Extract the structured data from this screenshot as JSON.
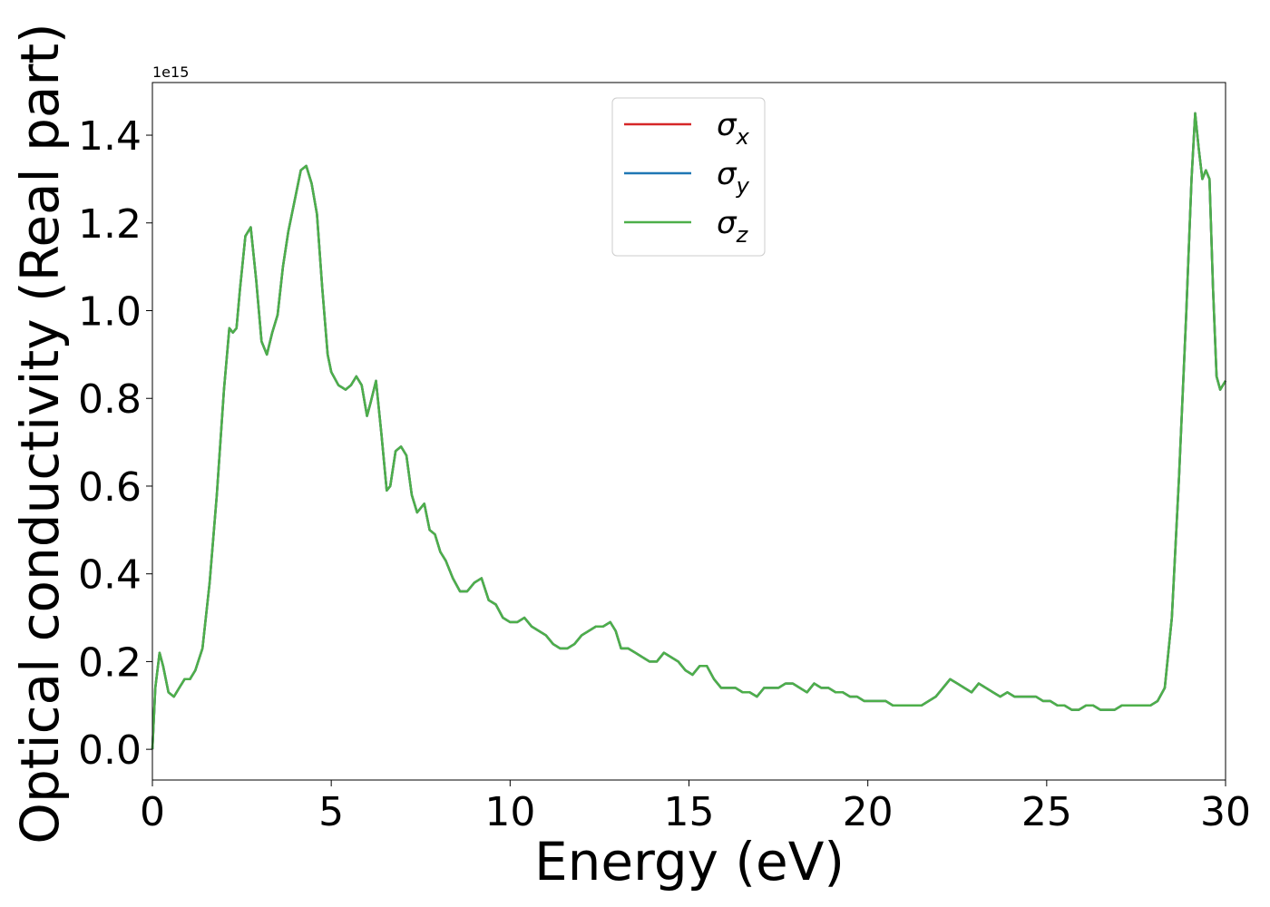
{
  "chart_data": {
    "type": "line",
    "xlabel": "Energy (eV)",
    "ylabel": "Optical conductivity (Real part)",
    "y_offset_label": "1e15",
    "xlim": [
      0,
      30
    ],
    "ylim": [
      -0.07,
      1.52
    ],
    "x_ticks": [
      0,
      5,
      10,
      15,
      20,
      25,
      30
    ],
    "y_ticks": [
      0.0,
      0.2,
      0.4,
      0.6,
      0.8,
      1.0,
      1.2,
      1.4
    ],
    "grid": false,
    "legend_position": "top-center",
    "series": [
      {
        "name": "σ",
        "sub": "x",
        "color": "#d62728"
      },
      {
        "name": "σ",
        "sub": "y",
        "color": "#1f77b4"
      },
      {
        "name": "σ",
        "sub": "z",
        "color": "#4daf4a"
      }
    ],
    "x": [
      0,
      0.08,
      0.2,
      0.3,
      0.45,
      0.6,
      0.75,
      0.9,
      1.05,
      1.2,
      1.4,
      1.6,
      1.8,
      2.0,
      2.15,
      2.25,
      2.35,
      2.45,
      2.6,
      2.75,
      2.9,
      3.05,
      3.2,
      3.35,
      3.5,
      3.65,
      3.8,
      4.0,
      4.15,
      4.3,
      4.45,
      4.6,
      4.75,
      4.9,
      5.0,
      5.2,
      5.4,
      5.55,
      5.7,
      5.85,
      6.0,
      6.1,
      6.25,
      6.4,
      6.55,
      6.65,
      6.8,
      6.95,
      7.1,
      7.25,
      7.4,
      7.6,
      7.75,
      7.9,
      8.05,
      8.2,
      8.4,
      8.6,
      8.8,
      9.0,
      9.2,
      9.4,
      9.6,
      9.8,
      10.0,
      10.2,
      10.4,
      10.6,
      10.8,
      11.0,
      11.2,
      11.4,
      11.6,
      11.8,
      12.0,
      12.2,
      12.4,
      12.6,
      12.8,
      12.95,
      13.1,
      13.3,
      13.5,
      13.7,
      13.9,
      14.1,
      14.3,
      14.5,
      14.7,
      14.9,
      15.1,
      15.3,
      15.5,
      15.7,
      15.9,
      16.1,
      16.3,
      16.5,
      16.7,
      16.9,
      17.1,
      17.3,
      17.5,
      17.7,
      17.9,
      18.1,
      18.3,
      18.5,
      18.7,
      18.9,
      19.1,
      19.3,
      19.5,
      19.7,
      19.9,
      20.1,
      20.3,
      20.5,
      20.7,
      20.9,
      21.1,
      21.3,
      21.5,
      21.7,
      21.9,
      22.1,
      22.3,
      22.5,
      22.7,
      22.9,
      23.1,
      23.3,
      23.5,
      23.7,
      23.9,
      24.1,
      24.3,
      24.5,
      24.7,
      24.9,
      25.1,
      25.3,
      25.5,
      25.7,
      25.9,
      26.1,
      26.3,
      26.5,
      26.7,
      26.9,
      27.1,
      27.3,
      27.5,
      27.7,
      27.9,
      28.1,
      28.3,
      28.5,
      28.7,
      28.9,
      29.05,
      29.15,
      29.25,
      29.35,
      29.45,
      29.55,
      29.65,
      29.75,
      29.85,
      30.0
    ],
    "values": [
      0.0,
      0.14,
      0.22,
      0.19,
      0.13,
      0.12,
      0.14,
      0.16,
      0.16,
      0.18,
      0.23,
      0.38,
      0.58,
      0.82,
      0.96,
      0.95,
      0.96,
      1.05,
      1.17,
      1.19,
      1.07,
      0.93,
      0.9,
      0.95,
      0.99,
      1.1,
      1.18,
      1.26,
      1.32,
      1.33,
      1.29,
      1.22,
      1.05,
      0.9,
      0.86,
      0.83,
      0.82,
      0.83,
      0.85,
      0.83,
      0.76,
      0.79,
      0.84,
      0.72,
      0.59,
      0.6,
      0.68,
      0.69,
      0.67,
      0.58,
      0.54,
      0.56,
      0.5,
      0.49,
      0.45,
      0.43,
      0.39,
      0.36,
      0.36,
      0.38,
      0.39,
      0.34,
      0.33,
      0.3,
      0.29,
      0.29,
      0.3,
      0.28,
      0.27,
      0.26,
      0.24,
      0.23,
      0.23,
      0.24,
      0.26,
      0.27,
      0.28,
      0.28,
      0.29,
      0.27,
      0.23,
      0.23,
      0.22,
      0.21,
      0.2,
      0.2,
      0.22,
      0.21,
      0.2,
      0.18,
      0.17,
      0.19,
      0.19,
      0.16,
      0.14,
      0.14,
      0.14,
      0.13,
      0.13,
      0.12,
      0.14,
      0.14,
      0.14,
      0.15,
      0.15,
      0.14,
      0.13,
      0.15,
      0.14,
      0.14,
      0.13,
      0.13,
      0.12,
      0.12,
      0.11,
      0.11,
      0.11,
      0.11,
      0.1,
      0.1,
      0.1,
      0.1,
      0.1,
      0.11,
      0.12,
      0.14,
      0.16,
      0.15,
      0.14,
      0.13,
      0.15,
      0.14,
      0.13,
      0.12,
      0.13,
      0.12,
      0.12,
      0.12,
      0.12,
      0.11,
      0.11,
      0.1,
      0.1,
      0.09,
      0.09,
      0.1,
      0.1,
      0.09,
      0.09,
      0.09,
      0.1,
      0.1,
      0.1,
      0.1,
      0.1,
      0.11,
      0.14,
      0.3,
      0.62,
      0.99,
      1.3,
      1.45,
      1.37,
      1.3,
      1.32,
      1.3,
      1.05,
      0.85,
      0.82,
      0.84
    ]
  }
}
